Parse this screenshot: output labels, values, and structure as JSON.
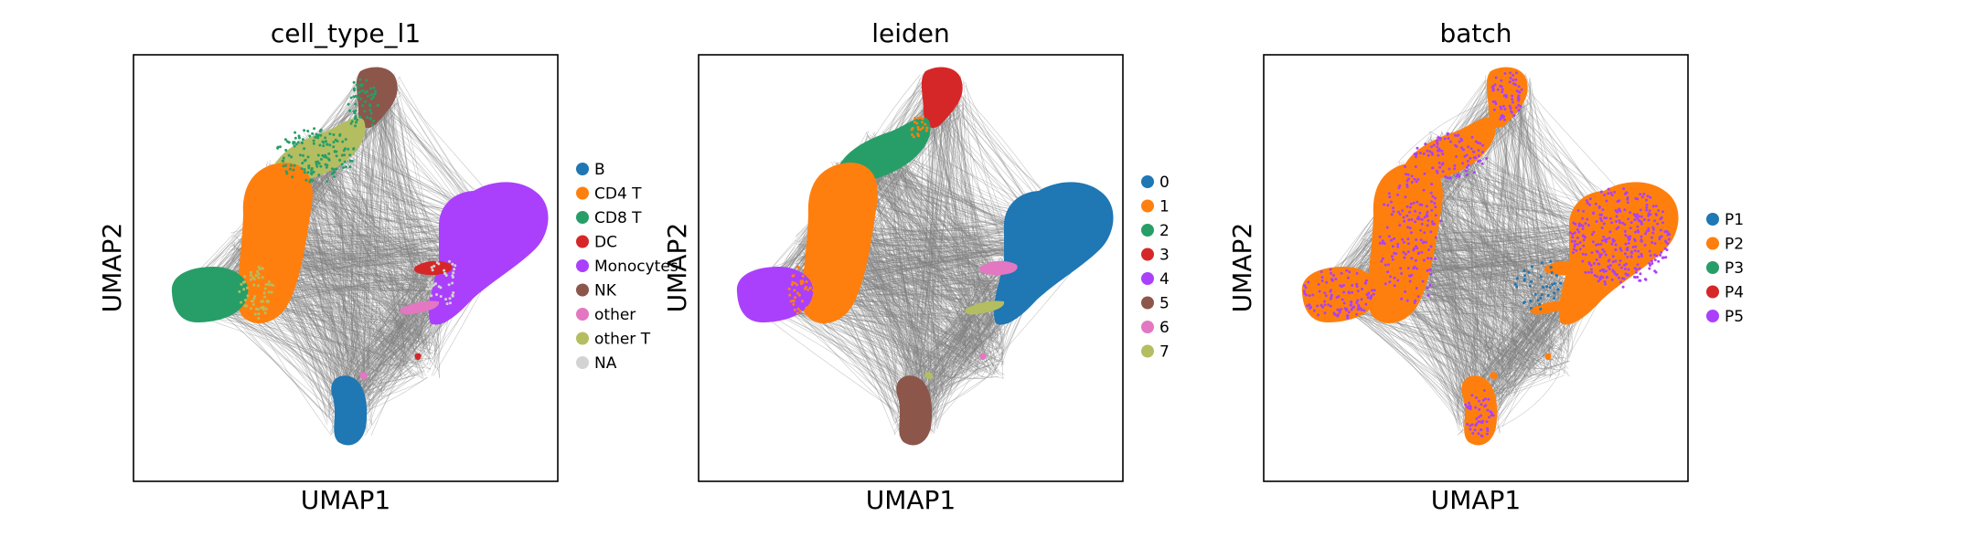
{
  "chart_data": [
    {
      "type": "scatter",
      "title": "cell_type_l1",
      "xlabel": "UMAP1",
      "ylabel": "UMAP2",
      "grid": false,
      "legend_placement": "right",
      "series": [
        {
          "name": "B",
          "color": "#1f77b4"
        },
        {
          "name": "CD4 T",
          "color": "#ff7f0e"
        },
        {
          "name": "CD8 T",
          "color": "#279e68"
        },
        {
          "name": "DC",
          "color": "#d62728"
        },
        {
          "name": "Monocytes",
          "color": "#aa40fc"
        },
        {
          "name": "NK",
          "color": "#8c564b"
        },
        {
          "name": "other",
          "color": "#e377c2"
        },
        {
          "name": "other T",
          "color": "#b5bd61"
        },
        {
          "name": "NA",
          "color": "#d3d3d3"
        }
      ]
    },
    {
      "type": "scatter",
      "title": "leiden",
      "xlabel": "UMAP1",
      "ylabel": "UMAP2",
      "grid": false,
      "legend_placement": "right",
      "series": [
        {
          "name": "0",
          "color": "#1f77b4"
        },
        {
          "name": "1",
          "color": "#ff7f0e"
        },
        {
          "name": "2",
          "color": "#279e68"
        },
        {
          "name": "3",
          "color": "#d62728"
        },
        {
          "name": "4",
          "color": "#aa40fc"
        },
        {
          "name": "5",
          "color": "#8c564b"
        },
        {
          "name": "6",
          "color": "#e377c2"
        },
        {
          "name": "7",
          "color": "#b5bd61"
        }
      ]
    },
    {
      "type": "scatter",
      "title": "batch",
      "xlabel": "UMAP1",
      "ylabel": "UMAP2",
      "grid": false,
      "legend_placement": "right",
      "series": [
        {
          "name": "P1",
          "color": "#1f77b4"
        },
        {
          "name": "P2",
          "color": "#ff7f0e"
        },
        {
          "name": "P3",
          "color": "#279e68"
        },
        {
          "name": "P4",
          "color": "#d62728"
        },
        {
          "name": "P5",
          "color": "#aa40fc"
        }
      ]
    }
  ],
  "edge_color": "#808080"
}
